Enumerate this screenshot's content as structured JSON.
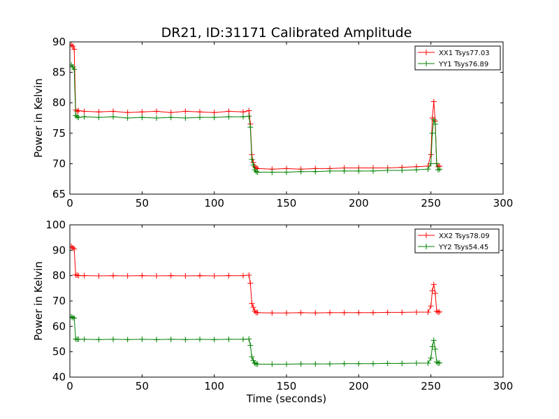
{
  "chart_data": [
    {
      "type": "line",
      "title": "DR21, ID:31171 Calibrated Amplitude",
      "xlabel": "",
      "ylabel": "Power in Kelvin",
      "xlim": [
        0,
        300
      ],
      "ylim": [
        65,
        90
      ],
      "xticks": [
        "0",
        "50",
        "100",
        "150",
        "200",
        "250",
        "300"
      ],
      "yticks": [
        "65",
        "70",
        "75",
        "80",
        "85",
        "90"
      ],
      "legend_position": "top-right",
      "grid": false,
      "series": [
        {
          "name": "XX1 Tsys77.03",
          "color": "#ff0000",
          "marker": "+",
          "x": [
            1,
            2,
            3,
            4,
            5,
            6,
            10,
            20,
            30,
            40,
            50,
            60,
            70,
            80,
            90,
            100,
            110,
            120,
            124,
            125,
            126,
            127,
            128,
            129,
            130,
            140,
            150,
            160,
            170,
            180,
            190,
            200,
            210,
            220,
            230,
            240,
            248,
            250,
            251,
            252,
            253,
            254,
            255,
            256
          ],
          "y": [
            89.5,
            89.3,
            88.8,
            78.8,
            78.6,
            78.7,
            78.6,
            78.5,
            78.6,
            78.4,
            78.5,
            78.6,
            78.4,
            78.6,
            78.5,
            78.4,
            78.6,
            78.5,
            78.7,
            76.5,
            71.5,
            70.2,
            69.5,
            69.3,
            69.2,
            69.1,
            69.2,
            69.1,
            69.2,
            69.2,
            69.3,
            69.3,
            69.3,
            69.3,
            69.4,
            69.5,
            69.6,
            71.5,
            77.5,
            80.2,
            77.0,
            70.0,
            69.5,
            69.6
          ]
        },
        {
          "name": "YY1 Tsys76.89",
          "color": "#008000",
          "marker": "+",
          "x": [
            1,
            2,
            3,
            4,
            5,
            6,
            10,
            20,
            30,
            40,
            50,
            60,
            70,
            80,
            90,
            100,
            110,
            120,
            124,
            125,
            126,
            127,
            128,
            129,
            130,
            140,
            150,
            160,
            170,
            180,
            190,
            200,
            210,
            220,
            230,
            240,
            248,
            250,
            251,
            252,
            253,
            254,
            255,
            256
          ],
          "y": [
            86.2,
            85.9,
            85.5,
            77.9,
            77.7,
            77.6,
            77.7,
            77.6,
            77.7,
            77.5,
            77.6,
            77.5,
            77.6,
            77.5,
            77.6,
            77.6,
            77.7,
            77.7,
            77.8,
            76.0,
            70.7,
            69.8,
            69.0,
            68.7,
            68.6,
            68.6,
            68.6,
            68.7,
            68.7,
            68.8,
            68.8,
            68.8,
            68.8,
            68.9,
            68.9,
            69.0,
            69.1,
            70.0,
            75.0,
            77.2,
            76.5,
            70.0,
            69.0,
            69.1
          ]
        }
      ]
    },
    {
      "type": "line",
      "title": "",
      "xlabel": "Time (seconds)",
      "ylabel": "Power in Kelvin",
      "xlim": [
        0,
        300
      ],
      "ylim": [
        40,
        100
      ],
      "xticks": [
        "0",
        "50",
        "100",
        "150",
        "200",
        "250",
        "300"
      ],
      "yticks": [
        "40",
        "50",
        "60",
        "70",
        "80",
        "90",
        "100"
      ],
      "legend_position": "top-right",
      "grid": false,
      "series": [
        {
          "name": "XX2 Tsys78.09",
          "color": "#ff0000",
          "marker": "+",
          "x": [
            1,
            2,
            3,
            4,
            5,
            6,
            10,
            20,
            30,
            40,
            50,
            60,
            70,
            80,
            90,
            100,
            110,
            120,
            124,
            125,
            126,
            127,
            128,
            129,
            130,
            140,
            150,
            160,
            170,
            180,
            190,
            200,
            210,
            220,
            230,
            240,
            248,
            250,
            251,
            252,
            253,
            254,
            255,
            256
          ],
          "y": [
            91.5,
            91.0,
            90.5,
            80.3,
            80.1,
            80.0,
            80.0,
            79.9,
            80.0,
            79.9,
            80.0,
            79.9,
            80.0,
            79.9,
            80.0,
            79.9,
            80.0,
            80.0,
            80.2,
            77.0,
            69.0,
            67.5,
            66.0,
            65.5,
            65.4,
            65.3,
            65.3,
            65.4,
            65.3,
            65.4,
            65.4,
            65.4,
            65.4,
            65.5,
            65.5,
            65.6,
            65.6,
            68.0,
            74.0,
            76.5,
            73.0,
            66.0,
            65.6,
            65.7
          ]
        },
        {
          "name": "YY2 Tsys54.45",
          "color": "#008000",
          "marker": "+",
          "x": [
            1,
            2,
            3,
            4,
            5,
            6,
            10,
            20,
            30,
            40,
            50,
            60,
            70,
            80,
            90,
            100,
            110,
            120,
            124,
            125,
            126,
            127,
            128,
            129,
            130,
            140,
            150,
            160,
            170,
            180,
            190,
            200,
            210,
            220,
            230,
            240,
            248,
            250,
            251,
            252,
            253,
            254,
            255,
            256
          ],
          "y": [
            63.8,
            63.5,
            63.2,
            55.0,
            54.9,
            54.9,
            54.9,
            54.8,
            54.9,
            54.8,
            54.9,
            54.8,
            54.9,
            54.8,
            54.9,
            54.8,
            54.9,
            54.9,
            55.0,
            52.5,
            48.0,
            46.5,
            45.5,
            45.2,
            45.1,
            45.1,
            45.1,
            45.2,
            45.2,
            45.2,
            45.3,
            45.3,
            45.3,
            45.4,
            45.4,
            45.5,
            45.5,
            47.5,
            52.0,
            54.5,
            51.0,
            46.0,
            45.5,
            45.6
          ]
        }
      ]
    }
  ]
}
